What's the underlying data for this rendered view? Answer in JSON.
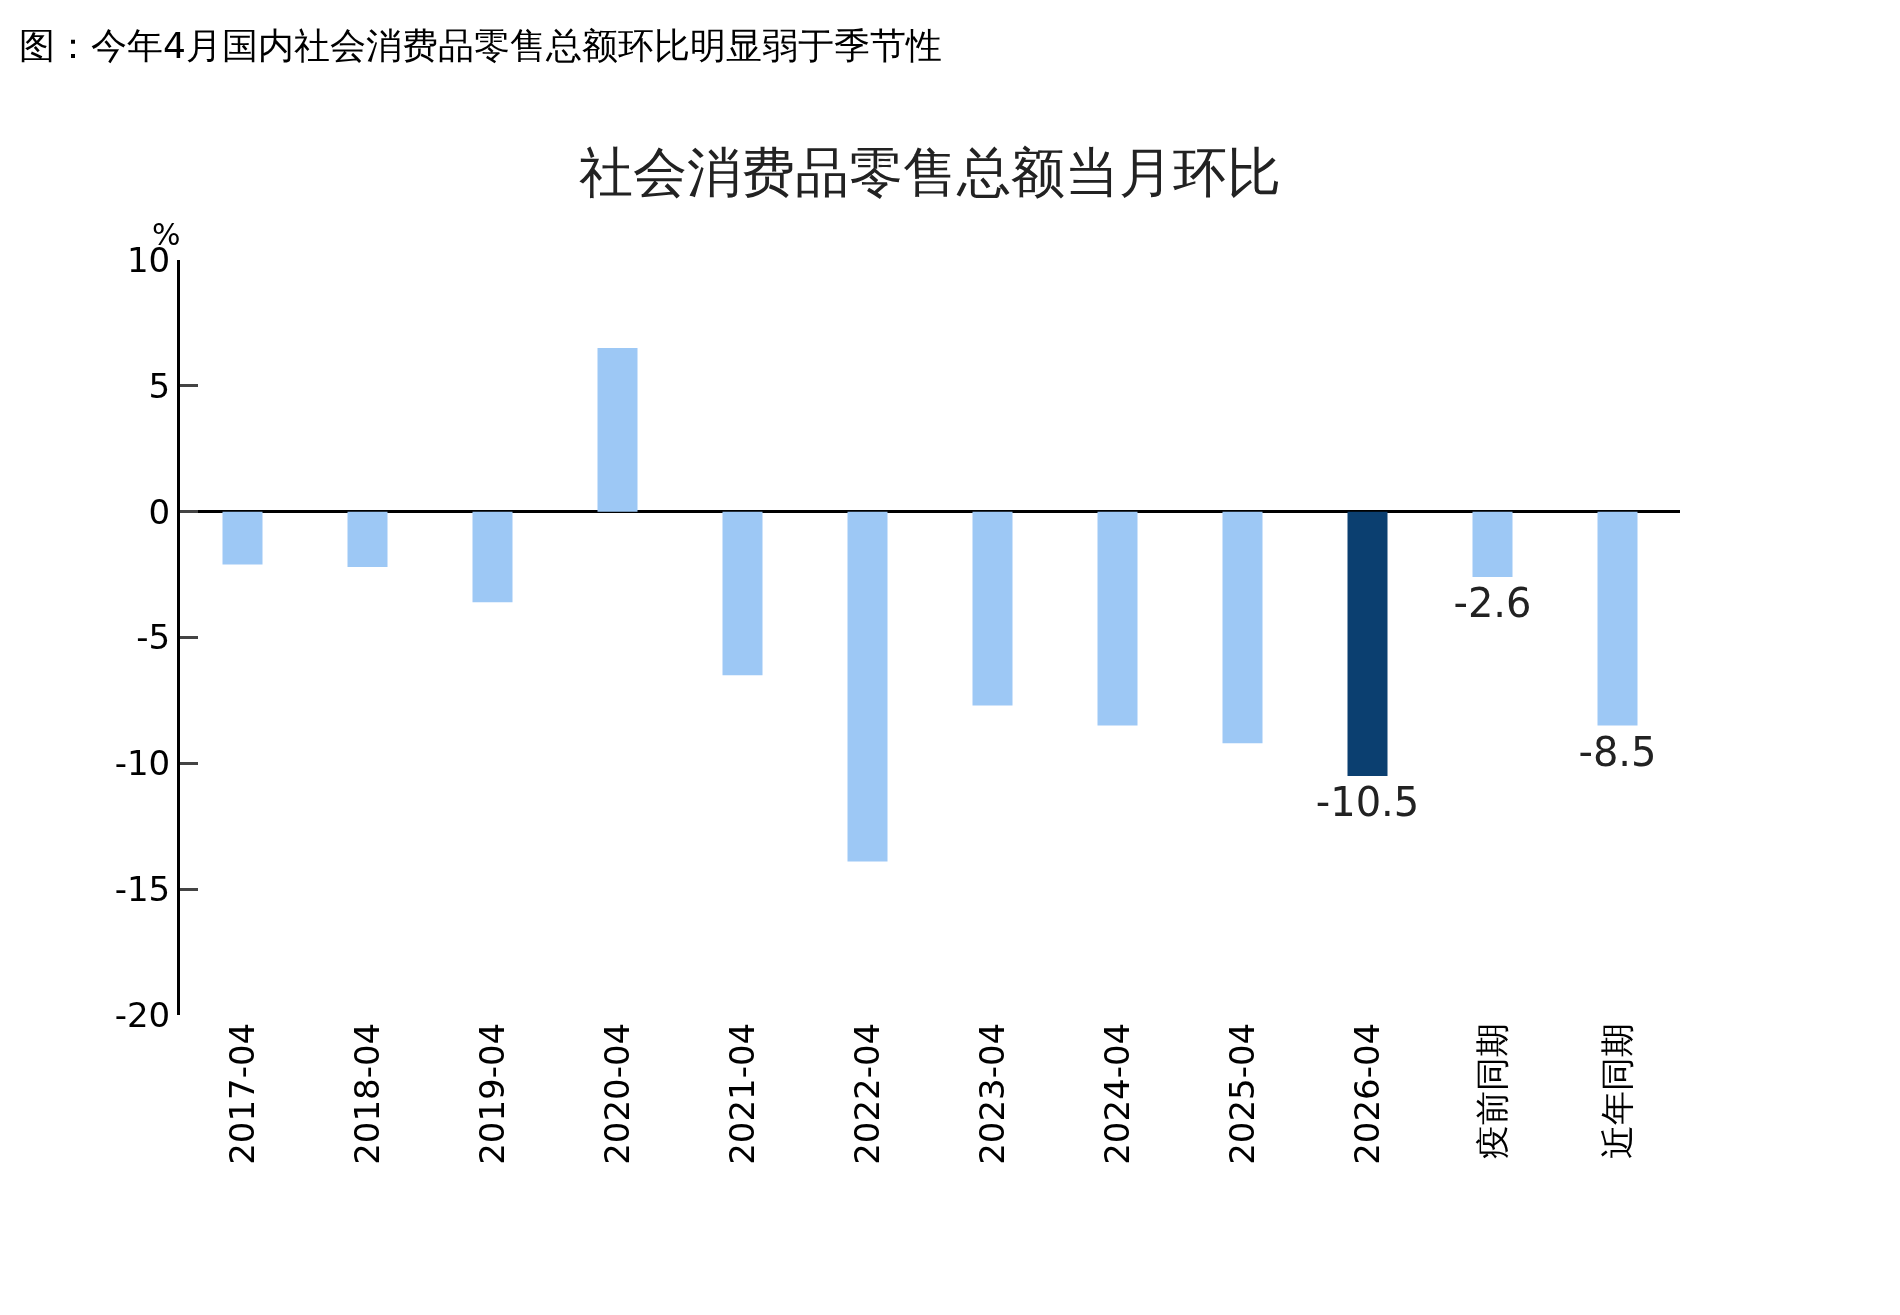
{
  "chart_data": {
    "type": "bar",
    "title": "图：今年4月国内社会消费品零售总额环比明显弱于季节性",
    "subtitle": "社会消费品零售总额当月环比",
    "ylabel": "%",
    "categories": [
      "2017-04",
      "2018-04",
      "2019-04",
      "2020-04",
      "2021-04",
      "2022-04",
      "2023-04",
      "2024-04",
      "2025-04",
      "2026-04",
      "疫前同期",
      "近年同期"
    ],
    "values": [
      -2.1,
      -2.2,
      -3.6,
      6.5,
      -6.5,
      -13.9,
      -7.7,
      -8.5,
      -9.2,
      -10.5,
      -2.6,
      -8.5
    ],
    "colors": [
      "#9dc8f5",
      "#9dc8f5",
      "#9dc8f5",
      "#9dc8f5",
      "#9dc8f5",
      "#9dc8f5",
      "#9dc8f5",
      "#9dc8f5",
      "#9dc8f5",
      "#0b3f70",
      "#9dc8f5",
      "#9dc8f5"
    ],
    "value_labels": [
      null,
      null,
      null,
      null,
      null,
      null,
      null,
      null,
      null,
      "-10.5",
      "-2.6",
      "-8.5"
    ],
    "ylim": [
      -20,
      10
    ],
    "yticks": [
      -20,
      -15,
      -10,
      -5,
      0,
      5,
      10
    ],
    "legend": false
  }
}
